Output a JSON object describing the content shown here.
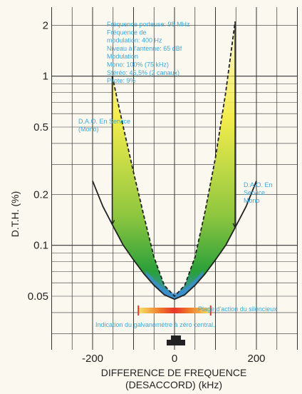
{
  "chart_data": {
    "type": "line",
    "title": "",
    "xlabel": "DIFFERENCE DE FREQUENCE",
    "xlabel_line2": "(DESACCORD) (kHz)",
    "ylabel": "D.T.H. (%)",
    "y_scale": "log",
    "xlim": [
      -300,
      300
    ],
    "ylim": [
      0.025,
      10
    ],
    "grid": true,
    "x_ticks": [
      -200,
      0,
      200
    ],
    "x_tick_labels": [
      "-200",
      "0",
      "200"
    ],
    "y_ticks": [
      0.05,
      0.1,
      0.2,
      0.5,
      1,
      2
    ],
    "y_tick_labels": [
      "0.05",
      "0.1",
      "0.2",
      "0.5",
      "1",
      "2"
    ],
    "conditions": [
      "Fréquence porteuse: 98 MHz",
      "Fréquence de",
      "modulation: 400 Hz",
      "Niveau à l'antenne: 65 dBf",
      "Modulation",
      "Mono: 100% (75 kHz)",
      "Stéréo: 45,5% (2 canaux)",
      "Pilote: 9%"
    ],
    "series": [
      {
        "name": "",
        "style": "solid",
        "x": [
          -200,
          -175,
          -150,
          -125,
          -100,
          -75,
          -50,
          -25,
          0,
          25,
          50,
          75,
          100,
          125,
          150,
          175,
          200
        ],
        "y": [
          0.24,
          0.17,
          0.13,
          0.1,
          0.082,
          0.068,
          0.058,
          0.051,
          0.048,
          0.051,
          0.058,
          0.068,
          0.082,
          0.1,
          0.13,
          0.17,
          0.24
        ]
      },
      {
        "name": "",
        "style": "dashed",
        "x": [
          -152,
          -125,
          -100,
          -75,
          -50,
          -25,
          0,
          25,
          50,
          75,
          100,
          125,
          148
        ],
        "y": [
          1,
          0.5,
          0.27,
          0.15,
          0.085,
          0.058,
          0.05,
          0.058,
          0.085,
          0.16,
          0.33,
          0.8,
          2.1
        ]
      }
    ],
    "annotations": [
      {
        "text_lines": [
          "D.A.O. En Service",
          "(Mono)"
        ],
        "x": -155,
        "y": 1.0
      },
      {
        "text_lines": [
          "D.A.O. En",
          "Service",
          "Mono"
        ],
        "x": 150,
        "y": 0.25
      },
      {
        "text": "Plage d'action du silencieux",
        "x_range": [
          -50,
          50
        ]
      },
      {
        "text": "Indication du galvanomètre à zéro central."
      }
    ],
    "colors": {
      "fill_top": "#f7ef52",
      "fill_bottom": "#2aa03a",
      "bottom_band": "#3c8ed4",
      "silencer_bar": "#e8342c",
      "annotation_text": "#3aa8d8",
      "curve": "#222222"
    }
  }
}
